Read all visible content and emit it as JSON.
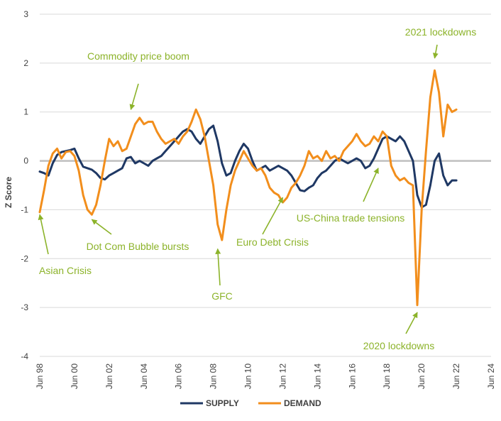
{
  "chart_data": {
    "type": "line",
    "ylabel": "Z Score",
    "xlabel": "",
    "title": "",
    "ylim": [
      -4,
      3
    ],
    "yticks": [
      -4,
      -3,
      -2,
      -1,
      0,
      1,
      2,
      3
    ],
    "xlim": [
      "1998-06",
      "2024-06"
    ],
    "xticks": [
      "Jun 98",
      "Jun 00",
      "Jun 02",
      "Jun 04",
      "Jun 06",
      "Jun 08",
      "Jun 10",
      "Jun 12",
      "Jun 14",
      "Jun 16",
      "Jun 18",
      "Jun 20",
      "Jun 22",
      "Jun 24"
    ],
    "grid": "horizontal",
    "legend_position": "bottom-center",
    "colors": {
      "supply": "#1f3864",
      "demand": "#f28e1c",
      "annotation": "#8cb32a",
      "grid": "#d9d9d9",
      "zero_line": "#bfbfbf"
    },
    "series": [
      {
        "name": "SUPPLY",
        "points": [
          [
            "1998-06",
            -0.22
          ],
          [
            "1998-09",
            -0.25
          ],
          [
            "1998-12",
            -0.3
          ],
          [
            "1999-03",
            -0.05
          ],
          [
            "1999-06",
            0.12
          ],
          [
            "1999-09",
            0.18
          ],
          [
            "1999-12",
            0.2
          ],
          [
            "2000-03",
            0.22
          ],
          [
            "2000-06",
            0.25
          ],
          [
            "2000-09",
            0.05
          ],
          [
            "2000-12",
            -0.12
          ],
          [
            "2001-03",
            -0.15
          ],
          [
            "2001-06",
            -0.18
          ],
          [
            "2001-09",
            -0.25
          ],
          [
            "2001-12",
            -0.35
          ],
          [
            "2002-03",
            -0.38
          ],
          [
            "2002-06",
            -0.3
          ],
          [
            "2002-09",
            -0.25
          ],
          [
            "2002-12",
            -0.2
          ],
          [
            "2003-03",
            -0.15
          ],
          [
            "2003-06",
            0.05
          ],
          [
            "2003-09",
            0.08
          ],
          [
            "2003-12",
            -0.05
          ],
          [
            "2004-03",
            0.0
          ],
          [
            "2004-06",
            -0.05
          ],
          [
            "2004-09",
            -0.1
          ],
          [
            "2004-12",
            0.0
          ],
          [
            "2005-03",
            0.05
          ],
          [
            "2005-06",
            0.1
          ],
          [
            "2005-09",
            0.2
          ],
          [
            "2005-12",
            0.3
          ],
          [
            "2006-03",
            0.4
          ],
          [
            "2006-06",
            0.5
          ],
          [
            "2006-09",
            0.6
          ],
          [
            "2006-12",
            0.65
          ],
          [
            "2007-03",
            0.6
          ],
          [
            "2007-06",
            0.45
          ],
          [
            "2007-09",
            0.35
          ],
          [
            "2007-12",
            0.5
          ],
          [
            "2008-03",
            0.65
          ],
          [
            "2008-06",
            0.72
          ],
          [
            "2008-09",
            0.4
          ],
          [
            "2008-12",
            -0.05
          ],
          [
            "2009-03",
            -0.3
          ],
          [
            "2009-06",
            -0.25
          ],
          [
            "2009-09",
            0.0
          ],
          [
            "2009-12",
            0.2
          ],
          [
            "2010-03",
            0.35
          ],
          [
            "2010-06",
            0.25
          ],
          [
            "2010-09",
            0.0
          ],
          [
            "2010-12",
            -0.2
          ],
          [
            "2011-03",
            -0.15
          ],
          [
            "2011-06",
            -0.1
          ],
          [
            "2011-09",
            -0.2
          ],
          [
            "2011-12",
            -0.15
          ],
          [
            "2012-03",
            -0.1
          ],
          [
            "2012-06",
            -0.15
          ],
          [
            "2012-09",
            -0.2
          ],
          [
            "2012-12",
            -0.3
          ],
          [
            "2013-03",
            -0.45
          ],
          [
            "2013-06",
            -0.6
          ],
          [
            "2013-09",
            -0.62
          ],
          [
            "2013-12",
            -0.55
          ],
          [
            "2014-03",
            -0.5
          ],
          [
            "2014-06",
            -0.35
          ],
          [
            "2014-09",
            -0.25
          ],
          [
            "2014-12",
            -0.2
          ],
          [
            "2015-03",
            -0.1
          ],
          [
            "2015-06",
            0.0
          ],
          [
            "2015-09",
            0.05
          ],
          [
            "2015-12",
            0.0
          ],
          [
            "2016-03",
            -0.05
          ],
          [
            "2016-06",
            0.0
          ],
          [
            "2016-09",
            0.05
          ],
          [
            "2016-12",
            0.0
          ],
          [
            "2017-03",
            -0.15
          ],
          [
            "2017-06",
            -0.1
          ],
          [
            "2017-09",
            0.05
          ],
          [
            "2017-12",
            0.25
          ],
          [
            "2018-03",
            0.45
          ],
          [
            "2018-06",
            0.5
          ],
          [
            "2018-09",
            0.45
          ],
          [
            "2018-12",
            0.4
          ],
          [
            "2019-03",
            0.5
          ],
          [
            "2019-06",
            0.4
          ],
          [
            "2019-09",
            0.2
          ],
          [
            "2019-12",
            0.0
          ],
          [
            "2020-03",
            -0.7
          ],
          [
            "2020-06",
            -0.95
          ],
          [
            "2020-09",
            -0.9
          ],
          [
            "2020-12",
            -0.5
          ],
          [
            "2021-03",
            0.0
          ],
          [
            "2021-06",
            0.15
          ],
          [
            "2021-09",
            -0.3
          ],
          [
            "2021-12",
            -0.5
          ],
          [
            "2022-03",
            -0.4
          ],
          [
            "2022-06",
            -0.4
          ]
        ]
      },
      {
        "name": "DEMAND",
        "points": [
          [
            "1998-06",
            -1.05
          ],
          [
            "1998-09",
            -0.6
          ],
          [
            "1998-12",
            -0.1
          ],
          [
            "1999-03",
            0.15
          ],
          [
            "1999-06",
            0.25
          ],
          [
            "1999-09",
            0.05
          ],
          [
            "1999-12",
            0.18
          ],
          [
            "2000-03",
            0.2
          ],
          [
            "2000-06",
            0.1
          ],
          [
            "2000-09",
            -0.2
          ],
          [
            "2000-12",
            -0.7
          ],
          [
            "2001-03",
            -1.0
          ],
          [
            "2001-06",
            -1.1
          ],
          [
            "2001-09",
            -0.9
          ],
          [
            "2001-12",
            -0.5
          ],
          [
            "2002-03",
            0.0
          ],
          [
            "2002-06",
            0.45
          ],
          [
            "2002-09",
            0.3
          ],
          [
            "2002-12",
            0.4
          ],
          [
            "2003-03",
            0.2
          ],
          [
            "2003-06",
            0.25
          ],
          [
            "2003-09",
            0.5
          ],
          [
            "2003-12",
            0.75
          ],
          [
            "2004-03",
            0.88
          ],
          [
            "2004-06",
            0.75
          ],
          [
            "2004-09",
            0.8
          ],
          [
            "2004-12",
            0.8
          ],
          [
            "2005-03",
            0.6
          ],
          [
            "2005-06",
            0.45
          ],
          [
            "2005-09",
            0.35
          ],
          [
            "2005-12",
            0.4
          ],
          [
            "2006-03",
            0.45
          ],
          [
            "2006-06",
            0.35
          ],
          [
            "2006-09",
            0.5
          ],
          [
            "2006-12",
            0.6
          ],
          [
            "2007-03",
            0.8
          ],
          [
            "2007-06",
            1.05
          ],
          [
            "2007-09",
            0.85
          ],
          [
            "2007-12",
            0.5
          ],
          [
            "2008-03",
            0.0
          ],
          [
            "2008-06",
            -0.5
          ],
          [
            "2008-09",
            -1.3
          ],
          [
            "2008-12",
            -1.62
          ],
          [
            "2009-03",
            -1.0
          ],
          [
            "2009-06",
            -0.5
          ],
          [
            "2009-09",
            -0.2
          ],
          [
            "2009-12",
            0.0
          ],
          [
            "2010-03",
            0.2
          ],
          [
            "2010-06",
            0.05
          ],
          [
            "2010-09",
            -0.1
          ],
          [
            "2010-12",
            -0.2
          ],
          [
            "2011-03",
            -0.15
          ],
          [
            "2011-06",
            -0.3
          ],
          [
            "2011-09",
            -0.55
          ],
          [
            "2011-12",
            -0.65
          ],
          [
            "2012-03",
            -0.7
          ],
          [
            "2012-06",
            -0.85
          ],
          [
            "2012-09",
            -0.75
          ],
          [
            "2012-12",
            -0.55
          ],
          [
            "2013-03",
            -0.45
          ],
          [
            "2013-06",
            -0.3
          ],
          [
            "2013-09",
            -0.1
          ],
          [
            "2013-12",
            0.2
          ],
          [
            "2014-03",
            0.05
          ],
          [
            "2014-06",
            0.1
          ],
          [
            "2014-09",
            0.0
          ],
          [
            "2014-12",
            0.2
          ],
          [
            "2015-03",
            0.05
          ],
          [
            "2015-06",
            0.1
          ],
          [
            "2015-09",
            0.0
          ],
          [
            "2015-12",
            0.2
          ],
          [
            "2016-03",
            0.3
          ],
          [
            "2016-06",
            0.4
          ],
          [
            "2016-09",
            0.55
          ],
          [
            "2016-12",
            0.4
          ],
          [
            "2017-03",
            0.3
          ],
          [
            "2017-06",
            0.35
          ],
          [
            "2017-09",
            0.5
          ],
          [
            "2017-12",
            0.4
          ],
          [
            "2018-03",
            0.6
          ],
          [
            "2018-06",
            0.5
          ],
          [
            "2018-09",
            -0.1
          ],
          [
            "2018-12",
            -0.3
          ],
          [
            "2019-03",
            -0.4
          ],
          [
            "2019-06",
            -0.35
          ],
          [
            "2019-09",
            -0.45
          ],
          [
            "2019-12",
            -0.5
          ],
          [
            "2020-03",
            -2.95
          ],
          [
            "2020-06",
            -1.0
          ],
          [
            "2020-09",
            0.2
          ],
          [
            "2020-12",
            1.3
          ],
          [
            "2021-03",
            1.85
          ],
          [
            "2021-06",
            1.4
          ],
          [
            "2021-09",
            0.5
          ],
          [
            "2021-12",
            1.15
          ],
          [
            "2022-03",
            1.0
          ],
          [
            "2022-06",
            1.05
          ]
        ]
      }
    ],
    "annotations": [
      {
        "text": "Commodity price boom",
        "target": [
          "2003-09",
          1.05
        ]
      },
      {
        "text": "2021 lockdowns",
        "target": [
          "2021-03",
          2.1
        ]
      },
      {
        "text": "Asian Crisis",
        "target": [
          "1998-06",
          -1.1
        ]
      },
      {
        "text": "Dot Com Bubble bursts",
        "target": [
          "2001-06",
          -1.2
        ]
      },
      {
        "text": "GFC",
        "target": [
          "2008-09",
          -1.8
        ]
      },
      {
        "text": "Euro Debt Crisis",
        "target": [
          "2012-06",
          -0.75
        ]
      },
      {
        "text": "US-China trade tensions",
        "target": [
          "2017-12",
          -0.15
        ]
      },
      {
        "text": "2020 lockdowns",
        "target": [
          "2020-03",
          -3.1
        ]
      }
    ]
  }
}
